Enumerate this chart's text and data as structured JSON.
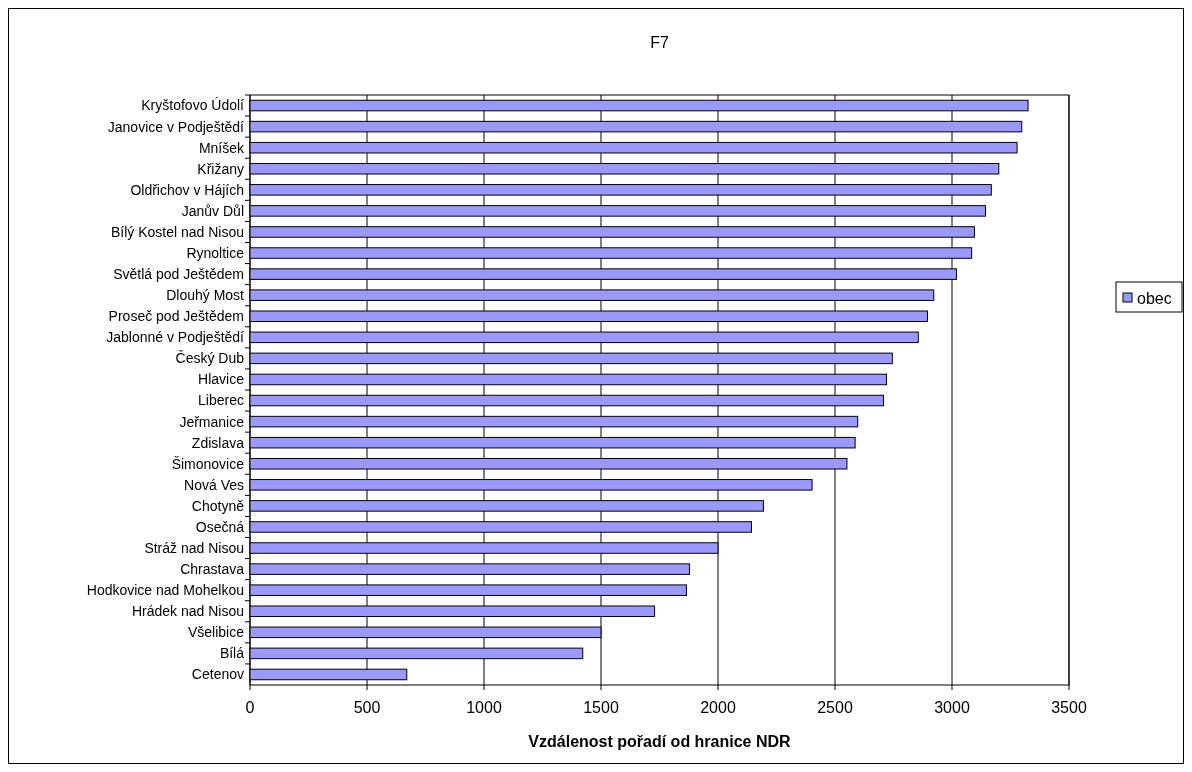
{
  "chart_data": {
    "type": "bar",
    "orientation": "horizontal",
    "title": "F7",
    "xlabel": "Vzdálenost pořadí od hranice NDR",
    "categories": [
      "Kryštofovo Údolí",
      "Janovice v Podještědí",
      "Mníšek",
      "Křižany",
      "Oldřichov v Hájích",
      "Janův Důl",
      "Bílý Kostel nad Nisou",
      "Rynoltice",
      "Světlá pod Ještědem",
      "Dlouhý Most",
      "Proseč pod Ještědem",
      "Jablonné v Podještědí",
      "Český Dub",
      "Hlavice",
      "Liberec",
      "Jeřmanice",
      "Zdislava",
      "Šimonovice",
      "Nová Ves",
      "Chotyně",
      "Osečná",
      "Stráž nad Nisou",
      "Chrastava",
      "Hodkovice nad Mohelkou",
      "Hrádek nad Nisou",
      "Všelibice",
      "Bílá",
      "Cetenov"
    ],
    "series": [
      {
        "name": "obec",
        "color": "#9999ff",
        "values": [
          3325,
          3298,
          3278,
          3200,
          3168,
          3143,
          3096,
          3084,
          3019,
          2922,
          2895,
          2856,
          2745,
          2720,
          2707,
          2597,
          2586,
          2551,
          2402,
          2194,
          2143,
          2000,
          1878,
          1865,
          1729,
          1500,
          1422,
          670
        ]
      }
    ],
    "xlim": [
      0,
      3500
    ],
    "xticks": [
      0,
      500,
      1000,
      1500,
      2000,
      2500,
      3000,
      3500
    ],
    "grid": "x",
    "legend": "right"
  }
}
